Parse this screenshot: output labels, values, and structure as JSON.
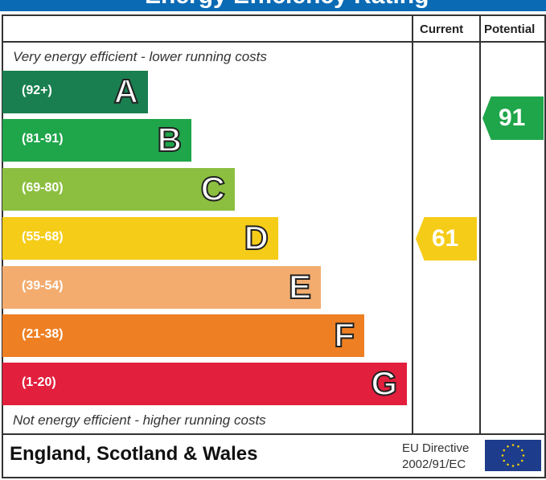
{
  "title": "Energy Efficiency Rating",
  "header": {
    "current": "Current",
    "potential": "Potential"
  },
  "top_note": "Very energy efficient - lower running costs",
  "bottom_note": "Not energy efficient - higher running costs",
  "footer": {
    "region": "England, Scotland & Wales",
    "directive_line1": "EU Directive",
    "directive_line2": "2002/91/EC"
  },
  "chart_data": {
    "type": "bar",
    "bands": [
      {
        "letter": "A",
        "range": "(92+)",
        "color": "#1a7f50"
      },
      {
        "letter": "B",
        "range": "(81-91)",
        "color": "#1fa54a"
      },
      {
        "letter": "C",
        "range": "(69-80)",
        "color": "#8cbf40"
      },
      {
        "letter": "D",
        "range": "(55-68)",
        "color": "#f5cc18"
      },
      {
        "letter": "E",
        "range": "(39-54)",
        "color": "#f3ac6e"
      },
      {
        "letter": "F",
        "range": "(21-38)",
        "color": "#ee7f22"
      },
      {
        "letter": "G",
        "range": "(1-20)",
        "color": "#e21f3d"
      }
    ],
    "current": {
      "value": "61",
      "band": "D",
      "color": "#f5cc18"
    },
    "potential": {
      "value": "91",
      "band": "B",
      "color": "#1fa54a"
    }
  }
}
